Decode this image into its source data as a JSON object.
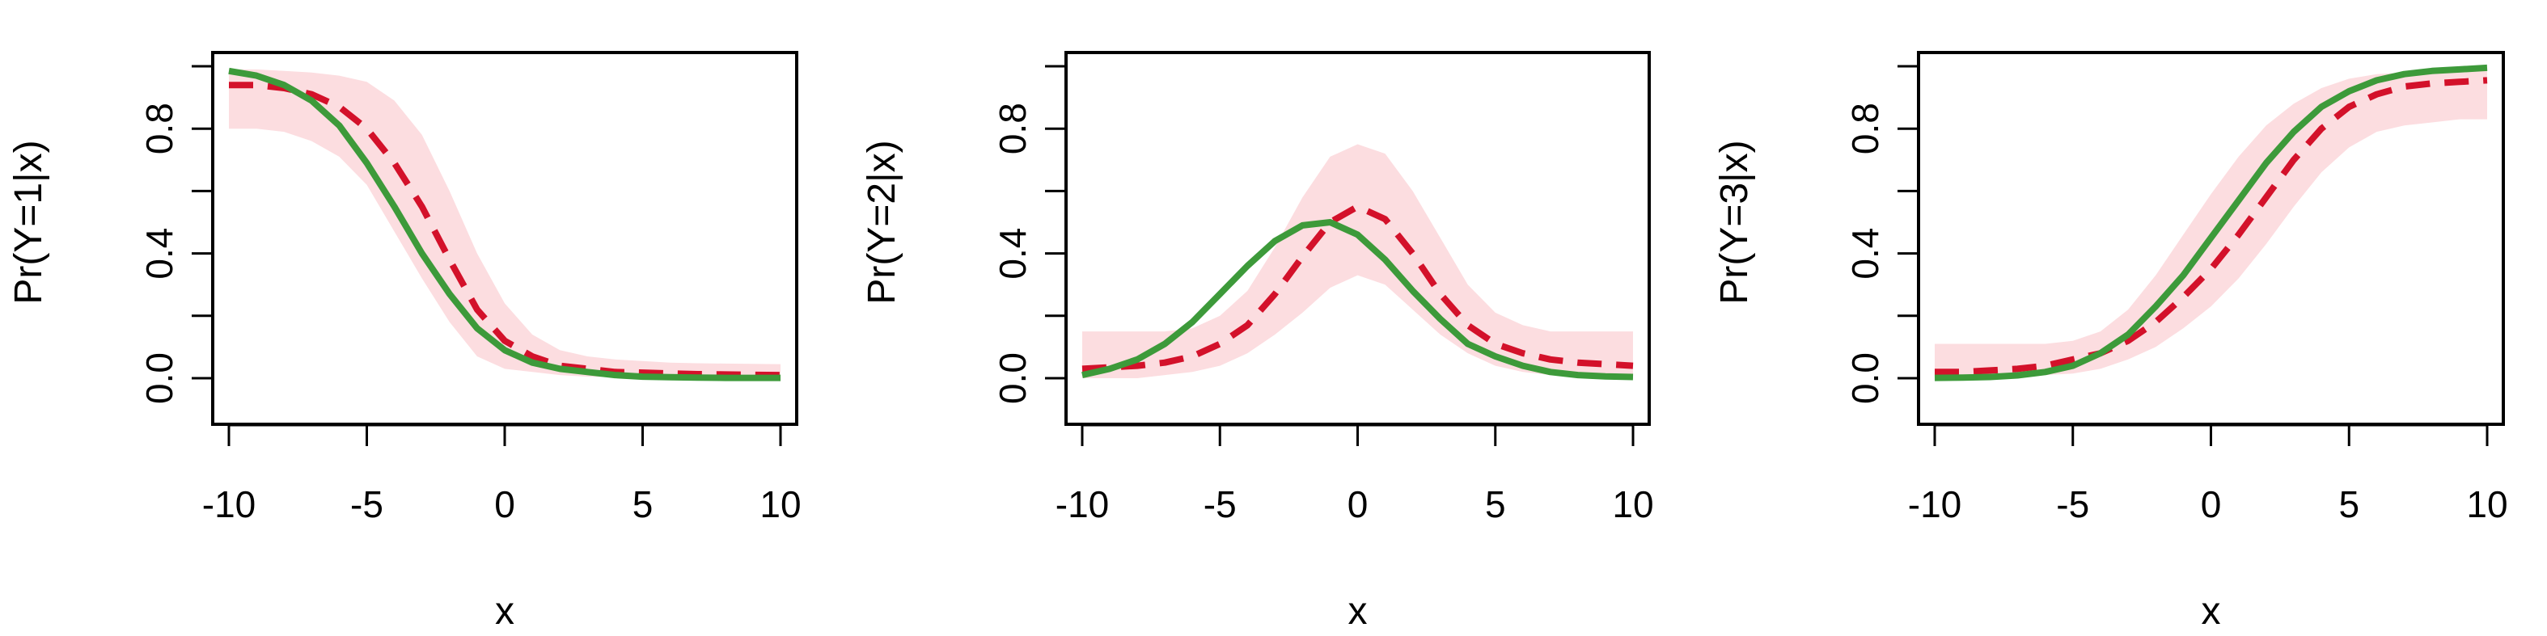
{
  "chart_data": [
    {
      "type": "line",
      "xlabel": "x",
      "ylabel": "Pr(Y=1|x)",
      "xlim": [
        -10,
        10
      ],
      "ylim": [
        0,
        1
      ],
      "x_ticks": [
        "-10",
        "-5",
        "0",
        "5",
        "10"
      ],
      "y_ticks": [
        "0.0",
        "0.4",
        "0.8"
      ],
      "x": [
        -10,
        -9,
        -8,
        -7,
        -6,
        -5,
        -4,
        -3,
        -2,
        -1,
        0,
        1,
        2,
        3,
        4,
        5,
        6,
        7,
        8,
        9,
        10
      ],
      "series": [
        {
          "style": "solid",
          "color": "#3d9a3a",
          "values": [
            0.985,
            0.97,
            0.94,
            0.89,
            0.81,
            0.69,
            0.55,
            0.4,
            0.27,
            0.16,
            0.09,
            0.05,
            0.03,
            0.02,
            0.01,
            0.005,
            0.003,
            0.002,
            0.001,
            0.001,
            0.001
          ]
        },
        {
          "style": "dashed",
          "color": "#d3112a",
          "values": [
            0.94,
            0.94,
            0.93,
            0.91,
            0.87,
            0.8,
            0.69,
            0.55,
            0.38,
            0.22,
            0.12,
            0.07,
            0.04,
            0.03,
            0.02,
            0.018,
            0.015,
            0.013,
            0.012,
            0.011,
            0.01
          ]
        }
      ],
      "band": {
        "color": "#fcdde0",
        "lower": [
          0.8,
          0.8,
          0.79,
          0.76,
          0.71,
          0.62,
          0.47,
          0.32,
          0.18,
          0.07,
          0.03,
          0.02,
          0.01,
          0.005,
          0.003,
          0.003,
          0.002,
          0.002,
          0.002,
          0.002,
          0.002
        ],
        "upper": [
          0.99,
          0.99,
          0.985,
          0.98,
          0.97,
          0.95,
          0.89,
          0.78,
          0.6,
          0.4,
          0.24,
          0.14,
          0.09,
          0.07,
          0.06,
          0.055,
          0.05,
          0.048,
          0.047,
          0.046,
          0.045
        ]
      }
    },
    {
      "type": "line",
      "xlabel": "x",
      "ylabel": "Pr(Y=2|x)",
      "xlim": [
        -10,
        10
      ],
      "ylim": [
        0,
        1
      ],
      "x_ticks": [
        "-10",
        "-5",
        "0",
        "5",
        "10"
      ],
      "y_ticks": [
        "0.0",
        "0.4",
        "0.8"
      ],
      "x": [
        -10,
        -9,
        -8,
        -7,
        -6,
        -5,
        -4,
        -3,
        -2,
        -1,
        0,
        1,
        2,
        3,
        4,
        5,
        6,
        7,
        8,
        9,
        10
      ],
      "series": [
        {
          "style": "solid",
          "color": "#3d9a3a",
          "values": [
            0.01,
            0.03,
            0.06,
            0.11,
            0.18,
            0.27,
            0.36,
            0.44,
            0.49,
            0.5,
            0.46,
            0.38,
            0.28,
            0.19,
            0.11,
            0.07,
            0.04,
            0.02,
            0.01,
            0.006,
            0.004
          ]
        },
        {
          "style": "dashed",
          "color": "#d3112a",
          "values": [
            0.03,
            0.035,
            0.04,
            0.05,
            0.07,
            0.11,
            0.17,
            0.27,
            0.39,
            0.5,
            0.55,
            0.51,
            0.4,
            0.27,
            0.17,
            0.11,
            0.08,
            0.06,
            0.05,
            0.045,
            0.04
          ]
        }
      ],
      "band": {
        "color": "#fcdde0",
        "lower": [
          0.0,
          0.0,
          0.0,
          0.01,
          0.02,
          0.04,
          0.08,
          0.14,
          0.21,
          0.29,
          0.33,
          0.3,
          0.22,
          0.14,
          0.08,
          0.04,
          0.02,
          0.01,
          0.005,
          0.003,
          0.002
        ],
        "upper": [
          0.15,
          0.15,
          0.15,
          0.15,
          0.16,
          0.2,
          0.28,
          0.42,
          0.58,
          0.71,
          0.75,
          0.72,
          0.6,
          0.45,
          0.3,
          0.21,
          0.17,
          0.15,
          0.15,
          0.15,
          0.15
        ]
      }
    },
    {
      "type": "line",
      "xlabel": "x",
      "ylabel": "Pr(Y=3|x)",
      "xlim": [
        -10,
        10
      ],
      "ylim": [
        0,
        1
      ],
      "x_ticks": [
        "-10",
        "-5",
        "0",
        "5",
        "10"
      ],
      "y_ticks": [
        "0.0",
        "0.4",
        "0.8"
      ],
      "x": [
        -10,
        -9,
        -8,
        -7,
        -6,
        -5,
        -4,
        -3,
        -2,
        -1,
        0,
        1,
        2,
        3,
        4,
        5,
        6,
        7,
        8,
        9,
        10
      ],
      "series": [
        {
          "style": "solid",
          "color": "#3d9a3a",
          "values": [
            0.001,
            0.002,
            0.004,
            0.009,
            0.02,
            0.04,
            0.08,
            0.14,
            0.23,
            0.33,
            0.45,
            0.57,
            0.69,
            0.79,
            0.87,
            0.92,
            0.955,
            0.975,
            0.985,
            0.99,
            0.995
          ]
        },
        {
          "style": "dashed",
          "color": "#d3112a",
          "values": [
            0.02,
            0.02,
            0.025,
            0.03,
            0.04,
            0.06,
            0.08,
            0.12,
            0.18,
            0.26,
            0.35,
            0.46,
            0.58,
            0.7,
            0.8,
            0.87,
            0.91,
            0.935,
            0.945,
            0.95,
            0.955
          ]
        }
      ],
      "band": {
        "color": "#fcdde0",
        "lower": [
          0.0,
          0.0,
          0.0,
          0.0,
          0.01,
          0.015,
          0.03,
          0.06,
          0.1,
          0.16,
          0.23,
          0.32,
          0.43,
          0.55,
          0.66,
          0.74,
          0.79,
          0.81,
          0.82,
          0.83,
          0.83
        ],
        "upper": [
          0.11,
          0.11,
          0.11,
          0.11,
          0.11,
          0.12,
          0.15,
          0.22,
          0.33,
          0.46,
          0.59,
          0.71,
          0.81,
          0.88,
          0.93,
          0.96,
          0.975,
          0.98,
          0.985,
          0.99,
          0.99
        ]
      }
    }
  ]
}
